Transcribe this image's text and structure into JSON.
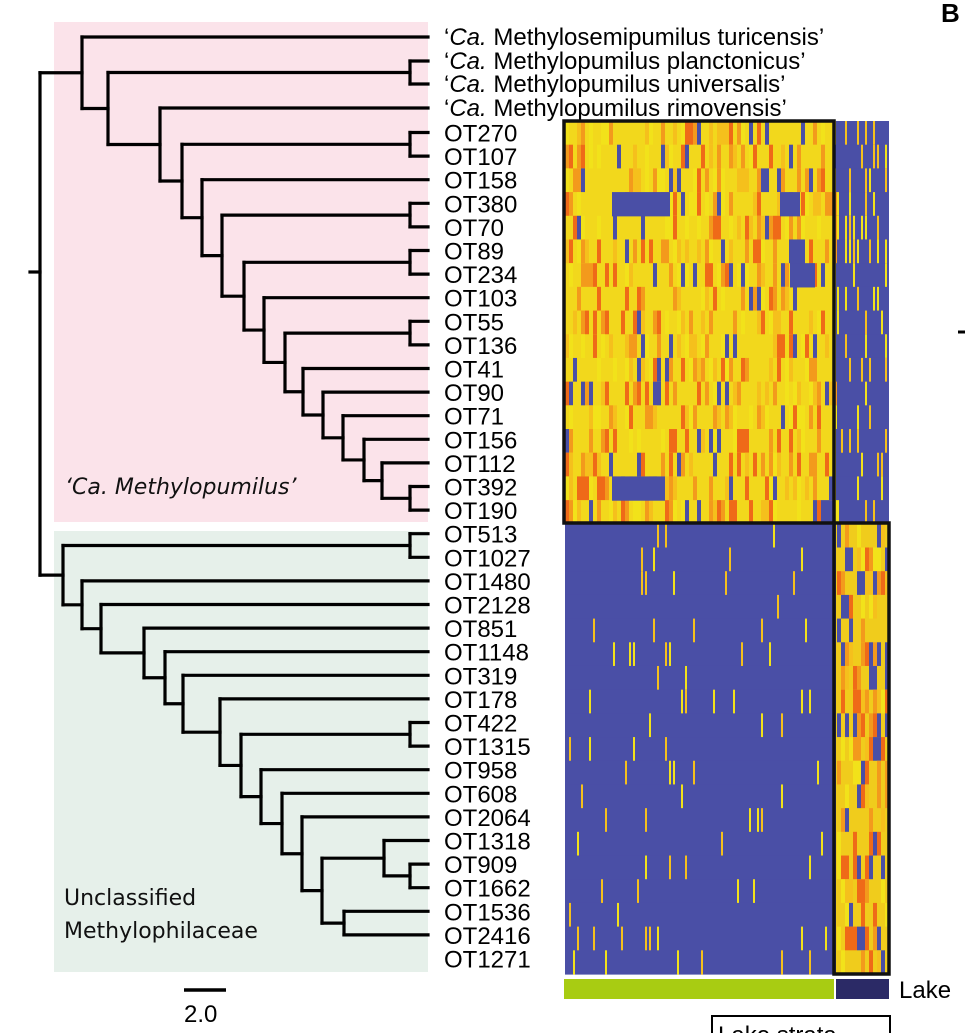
{
  "panel_letter": "B",
  "clades": {
    "methylopumilus_label": "‘Ca. Methylopumilus’",
    "unclassified_label_line1": "Unclassified",
    "unclassified_label_line2": "Methylophilaceae",
    "methylopumilus_color": "#fbe3ea",
    "unclassified_color": "#e6f0ea"
  },
  "reference_taxa": [
    {
      "prefix": "‘",
      "italic": "Ca.",
      "rest": " Methylosemipumilus turicensis’"
    },
    {
      "prefix": "‘",
      "italic": "Ca.",
      "rest": " Methylopumilus planctonicus’"
    },
    {
      "prefix": "‘",
      "italic": "Ca.",
      "rest": " Methylopumilus universalis’"
    },
    {
      "prefix": "‘",
      "italic": "Ca.",
      "rest": " Methylopumilus rimovensis’"
    }
  ],
  "otus": [
    "OT270",
    "OT107",
    "OT158",
    "OT380",
    "OT70",
    "OT89",
    "OT234",
    "OT103",
    "OT55",
    "OT136",
    "OT41",
    "OT90",
    "OT71",
    "OT156",
    "OT112",
    "OT392",
    "OT190",
    "OT513",
    "OT1027",
    "OT1480",
    "OT2128",
    "OT851",
    "OT1148",
    "OT319",
    "OT178",
    "OT422",
    "OT1315",
    "OT958",
    "OT608",
    "OT2064",
    "OT1318",
    "OT909",
    "OT1662",
    "OT1536",
    "OT2416",
    "OT1271"
  ],
  "scale_bar_label": "2.0",
  "bottom_bar": {
    "lake_label": "Lake",
    "segment_colors": [
      "#a8cc12",
      "#2b2a66"
    ]
  },
  "heatmap": {
    "low_color": "#4a4fa6",
    "high_colors": [
      "#f2e21a",
      "#f5c01c",
      "#f39a1c",
      "#ef6a18"
    ]
  },
  "cutoff_text": {
    "box_label": "Lake strata"
  }
}
